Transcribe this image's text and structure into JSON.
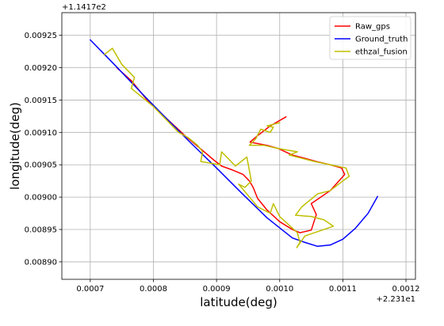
{
  "chart_data": {
    "type": "line",
    "title": "",
    "xlabel": "latitude(deg)",
    "ylabel": "longitude(deg)",
    "x_offset_label": "+2.231e1",
    "y_offset_label": "+1.1417e2",
    "x_offset": 22.31,
    "y_offset": 114.17,
    "xlim": [
      0.000655,
      0.001215
    ],
    "ylim": [
      0.008873,
      0.009285
    ],
    "x_ticks": [
      0.0007,
      0.0008,
      0.0009,
      0.001,
      0.0011,
      0.0012
    ],
    "x_tick_labels": [
      "0.0007",
      "0.0008",
      "0.0009",
      "0.0010",
      "0.0011",
      "0.0012"
    ],
    "y_ticks": [
      0.0089,
      0.00895,
      0.009,
      0.00905,
      0.0091,
      0.00915,
      0.0092,
      0.00925
    ],
    "y_tick_labels": [
      "0.00890",
      "0.00895",
      "0.00900",
      "0.00905",
      "0.00910",
      "0.00915",
      "0.00920",
      "0.00925"
    ],
    "grid": true,
    "legend_position": "top-right",
    "series": [
      {
        "name": "Raw_gps",
        "color": "#ff0000",
        "points": [
          [
            0.000742,
            0.0092
          ],
          [
            0.000765,
            0.00918
          ],
          [
            0.00079,
            0.00915
          ],
          [
            0.000818,
            0.009124
          ],
          [
            0.00085,
            0.009095
          ],
          [
            0.000878,
            0.009072
          ],
          [
            0.000896,
            0.009057
          ],
          [
            0.000908,
            0.009048
          ],
          [
            0.000925,
            0.009042
          ],
          [
            0.000942,
            0.009035
          ],
          [
            0.000952,
            0.009025
          ],
          [
            0.000958,
            0.009015
          ],
          [
            0.000965,
            0.008998
          ],
          [
            0.00098,
            0.00898
          ],
          [
            0.001,
            0.008962
          ],
          [
            0.00102,
            0.00895
          ],
          [
            0.001032,
            0.008945
          ],
          [
            0.00105,
            0.008949
          ],
          [
            0.001058,
            0.008973
          ],
          [
            0.00105,
            0.00899
          ],
          [
            0.00108,
            0.00901
          ],
          [
            0.001103,
            0.009035
          ],
          [
            0.001098,
            0.009045
          ],
          [
            0.00108,
            0.00905
          ],
          [
            0.001058,
            0.009055
          ],
          [
            0.00104,
            0.00906
          ],
          [
            0.00102,
            0.009065
          ],
          [
            0.000998,
            0.009075
          ],
          [
            0.00098,
            0.00908
          ],
          [
            0.000953,
            0.009085
          ],
          [
            0.000965,
            0.009095
          ],
          [
            0.000985,
            0.00911
          ],
          [
            0.00101,
            0.009124
          ]
        ]
      },
      {
        "name": "Ground_truth",
        "color": "#0000ff",
        "points": [
          [
            0.0007,
            0.009243
          ],
          [
            0.00074,
            0.009203
          ],
          [
            0.00078,
            0.009162
          ],
          [
            0.00082,
            0.009122
          ],
          [
            0.00086,
            0.009083
          ],
          [
            0.0009,
            0.009045
          ],
          [
            0.00094,
            0.009006
          ],
          [
            0.00098,
            0.008968
          ],
          [
            0.00102,
            0.008937
          ],
          [
            0.00104,
            0.00893
          ],
          [
            0.00106,
            0.008924
          ],
          [
            0.00108,
            0.008926
          ],
          [
            0.0011,
            0.008935
          ],
          [
            0.00112,
            0.008952
          ],
          [
            0.00114,
            0.008975
          ],
          [
            0.001155,
            0.009001
          ]
        ]
      },
      {
        "name": "ethzal_fusion",
        "color": "#bfbf00",
        "points": [
          [
            0.000722,
            0.00922
          ],
          [
            0.000735,
            0.00923
          ],
          [
            0.00075,
            0.009205
          ],
          [
            0.00077,
            0.009185
          ],
          [
            0.000765,
            0.009168
          ],
          [
            0.0008,
            0.00914
          ],
          [
            0.00082,
            0.00912
          ],
          [
            0.00084,
            0.0091
          ],
          [
            0.000855,
            0.009092
          ],
          [
            0.00087,
            0.00908
          ],
          [
            0.000878,
            0.00907
          ],
          [
            0.000875,
            0.009055
          ],
          [
            0.000905,
            0.00905
          ],
          [
            0.000908,
            0.00907
          ],
          [
            0.00093,
            0.009048
          ],
          [
            0.000948,
            0.009062
          ],
          [
            0.000955,
            0.009025
          ],
          [
            0.000945,
            0.009015
          ],
          [
            0.000935,
            0.00902
          ],
          [
            0.000965,
            0.008985
          ],
          [
            0.000985,
            0.008975
          ],
          [
            0.00099,
            0.00899
          ],
          [
            0.001,
            0.00897
          ],
          [
            0.001028,
            0.008945
          ],
          [
            0.001032,
            0.00893
          ],
          [
            0.001027,
            0.008922
          ],
          [
            0.00104,
            0.00894
          ],
          [
            0.001085,
            0.008955
          ],
          [
            0.00107,
            0.008965
          ],
          [
            0.00105,
            0.00897
          ],
          [
            0.001025,
            0.008972
          ],
          [
            0.001035,
            0.008985
          ],
          [
            0.00106,
            0.009005
          ],
          [
            0.00108,
            0.00901
          ],
          [
            0.0011,
            0.009025
          ],
          [
            0.00111,
            0.009032
          ],
          [
            0.001105,
            0.009045
          ],
          [
            0.00108,
            0.00905
          ],
          [
            0.001055,
            0.009055
          ],
          [
            0.001035,
            0.00906
          ],
          [
            0.001015,
            0.009065
          ],
          [
            0.001028,
            0.00907
          ],
          [
            0.000998,
            0.009075
          ],
          [
            0.000975,
            0.00908
          ],
          [
            0.000952,
            0.00908
          ],
          [
            0.000962,
            0.00909
          ],
          [
            0.00097,
            0.009105
          ],
          [
            0.000985,
            0.0091
          ],
          [
            0.00099,
            0.009108
          ],
          [
            0.00098,
            0.00911
          ],
          [
            0.001,
            0.009115
          ]
        ]
      }
    ]
  }
}
